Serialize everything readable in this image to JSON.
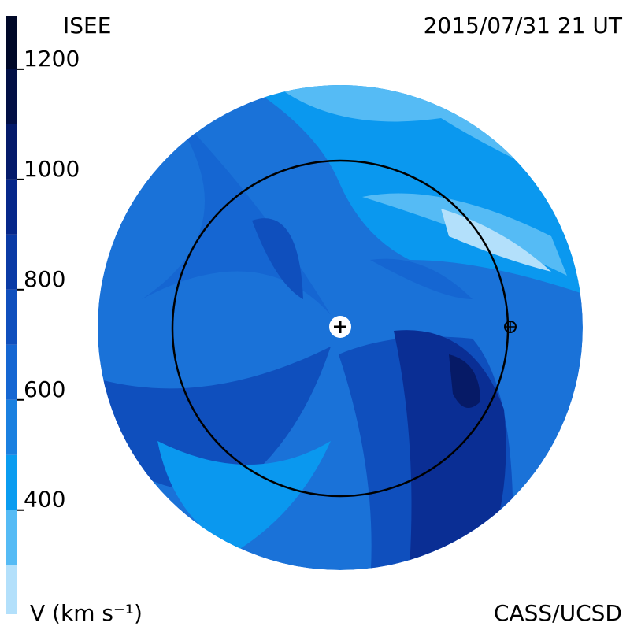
{
  "header": {
    "title": "ISEE",
    "timestamp": "2015/07/31 21 UT"
  },
  "footer": {
    "unit_label": "V (km s⁻¹)",
    "credit": "CASS/UCSD"
  },
  "colorbar": {
    "lim": [
      211,
      1297
    ],
    "ticks": [
      400,
      600,
      800,
      1000,
      1200
    ],
    "levels": [
      {
        "from": 211,
        "to": 300,
        "color": "#b3e0fb"
      },
      {
        "from": 300,
        "to": 400,
        "color": "#55bbf5"
      },
      {
        "from": 400,
        "to": 500,
        "color": "#0a9cf0"
      },
      {
        "from": 500,
        "to": 600,
        "color": "#1a80e0"
      },
      {
        "from": 600,
        "to": 700,
        "color": "#1566d2"
      },
      {
        "from": 700,
        "to": 800,
        "color": "#0f4fbd"
      },
      {
        "from": 800,
        "to": 900,
        "color": "#0a3aa5"
      },
      {
        "from": 900,
        "to": 1000,
        "color": "#06278a"
      },
      {
        "from": 1000,
        "to": 1100,
        "color": "#041a6a"
      },
      {
        "from": 1100,
        "to": 1200,
        "color": "#020f45"
      },
      {
        "from": 1200,
        "to": 1297,
        "color": "#000828"
      }
    ]
  }
}
